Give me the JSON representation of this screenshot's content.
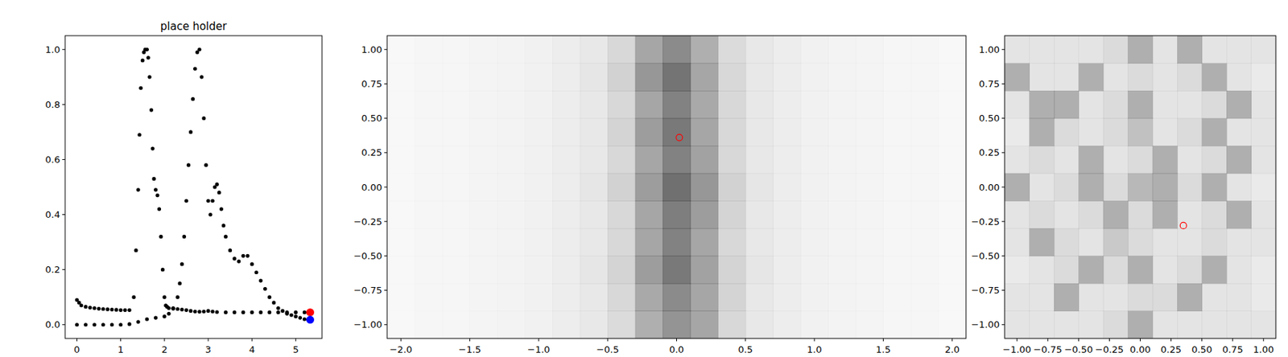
{
  "chart_data": [
    {
      "type": "scatter",
      "title": "place holder",
      "xlim": [
        -0.27,
        5.6
      ],
      "ylim": [
        -0.05,
        1.05
      ],
      "xticks": [
        0,
        1,
        2,
        3,
        4,
        5
      ],
      "yticks": [
        {
          "value": 0,
          "label": "0.0"
        },
        {
          "value": 0.2,
          "label": "0.2"
        },
        {
          "value": 0.4,
          "label": "0.4"
        },
        {
          "value": 0.6,
          "label": "0.6"
        },
        {
          "value": 0.8,
          "label": "0.8"
        },
        {
          "value": 1,
          "label": "1.0"
        }
      ],
      "series": [
        {
          "color": "#000000",
          "marker": "point",
          "x": [
            0,
            0.05,
            0.1,
            0.2,
            0.3,
            0.4,
            0.5,
            0.6,
            0.7,
            0.8,
            0.9,
            1.0,
            1.1,
            1.2,
            1.3,
            1.35,
            1.4,
            1.43,
            1.46,
            1.5,
            1.53,
            1.56,
            1.6,
            1.63,
            1.66,
            1.7,
            1.73,
            1.76,
            1.8,
            1.84,
            1.88,
            1.92,
            1.96,
            2.0,
            2.03,
            2.06,
            2.1,
            2.2,
            2.3,
            2.4,
            2.5,
            2.6,
            2.7,
            2.8,
            2.9,
            3.0,
            3.1,
            3.2,
            3.4,
            3.6,
            3.8,
            4.0,
            4.2,
            4.4,
            4.6,
            4.8,
            5.0,
            5.2
          ],
          "values": [
            0.09,
            0.08,
            0.07,
            0.065,
            0.062,
            0.06,
            0.058,
            0.057,
            0.056,
            0.055,
            0.054,
            0.053,
            0.053,
            0.053,
            0.1,
            0.27,
            0.49,
            0.69,
            0.86,
            0.96,
            0.99,
            1.0,
            1.0,
            0.97,
            0.9,
            0.78,
            0.64,
            0.53,
            0.49,
            0.47,
            0.42,
            0.32,
            0.2,
            0.1,
            0.07,
            0.065,
            0.06,
            0.058,
            0.057,
            0.055,
            0.053,
            0.05,
            0.048,
            0.047,
            0.048,
            0.05,
            0.048,
            0.046,
            0.045,
            0.045,
            0.045,
            0.045,
            0.045,
            0.045,
            0.045,
            0.045,
            0.045,
            0.045
          ]
        },
        {
          "color": "#000000",
          "marker": "point",
          "x": [
            0,
            0.2,
            0.4,
            0.6,
            0.8,
            1.0,
            1.2,
            1.4,
            1.6,
            1.8,
            2.0,
            2.1,
            2.2,
            2.3,
            2.35,
            2.4,
            2.45,
            2.5,
            2.55,
            2.6,
            2.65,
            2.7,
            2.75,
            2.8,
            2.85,
            2.9,
            2.95,
            3.0,
            3.05,
            3.1,
            3.15,
            3.2,
            3.25,
            3.3,
            3.35,
            3.4,
            3.5,
            3.6,
            3.7,
            3.8,
            3.9,
            4.0,
            4.1,
            4.2,
            4.3,
            4.4,
            4.5,
            4.6,
            4.7,
            4.8,
            4.9,
            5.0,
            5.1,
            5.2
          ],
          "values": [
            0,
            0,
            0,
            0,
            0,
            0,
            0.002,
            0.01,
            0.02,
            0.025,
            0.03,
            0.04,
            0.06,
            0.1,
            0.15,
            0.22,
            0.32,
            0.45,
            0.58,
            0.7,
            0.82,
            0.93,
            0.99,
            1.0,
            0.9,
            0.75,
            0.58,
            0.45,
            0.4,
            0.45,
            0.5,
            0.51,
            0.48,
            0.42,
            0.36,
            0.32,
            0.27,
            0.24,
            0.23,
            0.25,
            0.25,
            0.22,
            0.19,
            0.16,
            0.13,
            0.1,
            0.08,
            0.06,
            0.05,
            0.04,
            0.035,
            0.03,
            0.025,
            0.02
          ]
        },
        {
          "color": "#ff0000",
          "marker": "circle",
          "x": [
            5.33
          ],
          "values": [
            0.045
          ]
        },
        {
          "color": "#0000ff",
          "marker": "circle",
          "x": [
            5.33
          ],
          "values": [
            0.018
          ]
        }
      ]
    },
    {
      "type": "heatmap",
      "color": "#000000",
      "xlim": [
        -2.1,
        2.1
      ],
      "ylim": [
        -1.1,
        1.1
      ],
      "xticks": [
        {
          "value": -2,
          "label": "−2.0"
        },
        {
          "value": -1.5,
          "label": "−1.5"
        },
        {
          "value": -1,
          "label": "−1.0"
        },
        {
          "value": -0.5,
          "label": "−0.5"
        },
        {
          "value": 0,
          "label": "0.0"
        },
        {
          "value": 0.5,
          "label": "0.5"
        },
        {
          "value": 1,
          "label": "1.0"
        },
        {
          "value": 1.5,
          "label": "1.5"
        },
        {
          "value": 2,
          "label": "2.0"
        }
      ],
      "yticks": [
        {
          "value": -1,
          "label": "−1.00"
        },
        {
          "value": -0.75,
          "label": "−0.75"
        },
        {
          "value": -0.5,
          "label": "−0.50"
        },
        {
          "value": -0.25,
          "label": "−0.25"
        },
        {
          "value": 0,
          "label": "0.00"
        },
        {
          "value": 0.25,
          "label": "0.25"
        },
        {
          "value": 0.5,
          "label": "0.50"
        },
        {
          "value": 0.75,
          "label": "0.75"
        },
        {
          "value": 1,
          "label": "1.00"
        }
      ],
      "x_edges": [
        -2.1,
        -1.9,
        -1.7,
        -1.5,
        -1.3,
        -1.1,
        -0.9,
        -0.7,
        -0.5,
        -0.3,
        -0.1,
        0.1,
        0.3,
        0.5,
        0.7,
        0.9,
        1.1,
        1.3,
        1.5,
        1.7,
        1.9,
        2.1
      ],
      "y_edges": [
        -1.1,
        -0.9,
        -0.7,
        -0.5,
        -0.3,
        -0.1,
        0.1,
        0.3,
        0.5,
        0.7,
        0.9,
        1.1
      ],
      "cells": [
        [
          0.04,
          0.05,
          0.05,
          0.06,
          0.07,
          0.08,
          0.1,
          0.13,
          0.2,
          0.45,
          0.6,
          0.5,
          0.22,
          0.13,
          0.1,
          0.08,
          0.07,
          0.06,
          0.05,
          0.05,
          0.04
        ],
        [
          0.04,
          0.05,
          0.05,
          0.06,
          0.07,
          0.08,
          0.1,
          0.13,
          0.22,
          0.48,
          0.65,
          0.5,
          0.24,
          0.13,
          0.1,
          0.08,
          0.07,
          0.06,
          0.05,
          0.05,
          0.04
        ],
        [
          0.04,
          0.05,
          0.05,
          0.06,
          0.07,
          0.08,
          0.1,
          0.14,
          0.24,
          0.55,
          0.75,
          0.52,
          0.24,
          0.14,
          0.1,
          0.08,
          0.07,
          0.06,
          0.05,
          0.05,
          0.04
        ],
        [
          0.04,
          0.05,
          0.05,
          0.06,
          0.07,
          0.08,
          0.1,
          0.13,
          0.22,
          0.5,
          0.7,
          0.5,
          0.22,
          0.13,
          0.1,
          0.08,
          0.07,
          0.06,
          0.05,
          0.05,
          0.04
        ],
        [
          0.04,
          0.05,
          0.05,
          0.06,
          0.07,
          0.08,
          0.1,
          0.13,
          0.22,
          0.5,
          0.72,
          0.55,
          0.24,
          0.13,
          0.1,
          0.08,
          0.07,
          0.06,
          0.05,
          0.05,
          0.04
        ],
        [
          0.04,
          0.05,
          0.05,
          0.06,
          0.07,
          0.08,
          0.1,
          0.14,
          0.25,
          0.55,
          0.8,
          0.58,
          0.25,
          0.14,
          0.1,
          0.08,
          0.07,
          0.06,
          0.05,
          0.05,
          0.04
        ],
        [
          0.04,
          0.05,
          0.05,
          0.06,
          0.07,
          0.08,
          0.1,
          0.13,
          0.22,
          0.5,
          0.7,
          0.52,
          0.22,
          0.13,
          0.1,
          0.08,
          0.07,
          0.06,
          0.05,
          0.05,
          0.04
        ],
        [
          0.04,
          0.05,
          0.05,
          0.06,
          0.07,
          0.08,
          0.1,
          0.13,
          0.24,
          0.55,
          0.75,
          0.5,
          0.22,
          0.13,
          0.1,
          0.08,
          0.07,
          0.06,
          0.05,
          0.05,
          0.04
        ],
        [
          0.04,
          0.05,
          0.05,
          0.06,
          0.07,
          0.08,
          0.1,
          0.13,
          0.22,
          0.5,
          0.7,
          0.48,
          0.22,
          0.13,
          0.1,
          0.08,
          0.07,
          0.06,
          0.05,
          0.05,
          0.04
        ],
        [
          0.04,
          0.05,
          0.05,
          0.06,
          0.07,
          0.08,
          0.1,
          0.14,
          0.25,
          0.58,
          0.78,
          0.5,
          0.22,
          0.13,
          0.1,
          0.08,
          0.07,
          0.06,
          0.05,
          0.05,
          0.04
        ],
        [
          0.04,
          0.05,
          0.05,
          0.06,
          0.07,
          0.08,
          0.1,
          0.13,
          0.22,
          0.5,
          0.65,
          0.45,
          0.2,
          0.13,
          0.1,
          0.08,
          0.07,
          0.06,
          0.05,
          0.05,
          0.04
        ]
      ],
      "series": [
        {
          "type": "scatter",
          "color": "#ff0000",
          "marker": "open-circle",
          "x": [
            0.02
          ],
          "values": [
            0.36
          ]
        }
      ]
    },
    {
      "type": "heatmap",
      "color": "#000000",
      "xlim": [
        -1.1,
        1.1
      ],
      "ylim": [
        -1.1,
        1.1
      ],
      "xticks": [
        {
          "value": -1,
          "label": "−1.00"
        },
        {
          "value": -0.75,
          "label": "−0.75"
        },
        {
          "value": -0.5,
          "label": "−0.50"
        },
        {
          "value": -0.25,
          "label": "−0.25"
        },
        {
          "value": 0,
          "label": "0.00"
        },
        {
          "value": 0.25,
          "label": "0.25"
        },
        {
          "value": 0.5,
          "label": "0.50"
        },
        {
          "value": 0.75,
          "label": "0.75"
        },
        {
          "value": 1,
          "label": "1.00"
        }
      ],
      "yticks": [
        {
          "value": -1,
          "label": "−1.00"
        },
        {
          "value": -0.75,
          "label": "−0.75"
        },
        {
          "value": -0.5,
          "label": "−0.50"
        },
        {
          "value": -0.25,
          "label": "−0.25"
        },
        {
          "value": 0,
          "label": "0.00"
        },
        {
          "value": 0.25,
          "label": "0.25"
        },
        {
          "value": 0.5,
          "label": "0.50"
        },
        {
          "value": 0.75,
          "label": "0.75"
        },
        {
          "value": 1,
          "label": "1.00"
        }
      ],
      "x_edges": [
        -1.1,
        -0.9,
        -0.7,
        -0.5,
        -0.3,
        -0.1,
        0.1,
        0.3,
        0.5,
        0.7,
        0.9,
        1.1
      ],
      "y_edges": [
        -1.1,
        -0.9,
        -0.7,
        -0.5,
        -0.3,
        -0.1,
        0.1,
        0.3,
        0.5,
        0.7,
        0.9,
        1.1
      ],
      "cells": [
        [
          0.15,
          0.15,
          0.15,
          0.15,
          0.2,
          0.45,
          0.15,
          0.15,
          0.15,
          0.15,
          0.15
        ],
        [
          0.15,
          0.15,
          0.45,
          0.15,
          0.15,
          0.2,
          0.2,
          0.45,
          0.15,
          0.15,
          0.12
        ],
        [
          0.12,
          0.15,
          0.2,
          0.45,
          0.2,
          0.45,
          0.15,
          0.2,
          0.45,
          0.15,
          0.12
        ],
        [
          0.15,
          0.45,
          0.2,
          0.15,
          0.3,
          0.2,
          0.15,
          0.15,
          0.2,
          0.15,
          0.15
        ],
        [
          0.15,
          0.2,
          0.15,
          0.2,
          0.45,
          0.2,
          0.45,
          0.15,
          0.2,
          0.45,
          0.15
        ],
        [
          0.45,
          0.15,
          0.2,
          0.45,
          0.2,
          0.4,
          0.45,
          0.2,
          0.45,
          0.15,
          0.12
        ],
        [
          0.15,
          0.2,
          0.15,
          0.45,
          0.15,
          0.2,
          0.45,
          0.15,
          0.2,
          0.45,
          0.15
        ],
        [
          0.12,
          0.45,
          0.2,
          0.15,
          0.2,
          0.35,
          0.15,
          0.2,
          0.45,
          0.15,
          0.15
        ],
        [
          0.15,
          0.45,
          0.45,
          0.15,
          0.2,
          0.45,
          0.15,
          0.15,
          0.2,
          0.45,
          0.15
        ],
        [
          0.45,
          0.15,
          0.15,
          0.45,
          0.15,
          0.2,
          0.15,
          0.2,
          0.45,
          0.15,
          0.12
        ],
        [
          0.15,
          0.15,
          0.15,
          0.15,
          0.2,
          0.45,
          0.15,
          0.45,
          0.15,
          0.15,
          0.15
        ]
      ],
      "series": [
        {
          "type": "scatter",
          "color": "#ff0000",
          "marker": "open-circle",
          "x": [
            0.35
          ],
          "values": [
            -0.28
          ]
        }
      ]
    }
  ]
}
